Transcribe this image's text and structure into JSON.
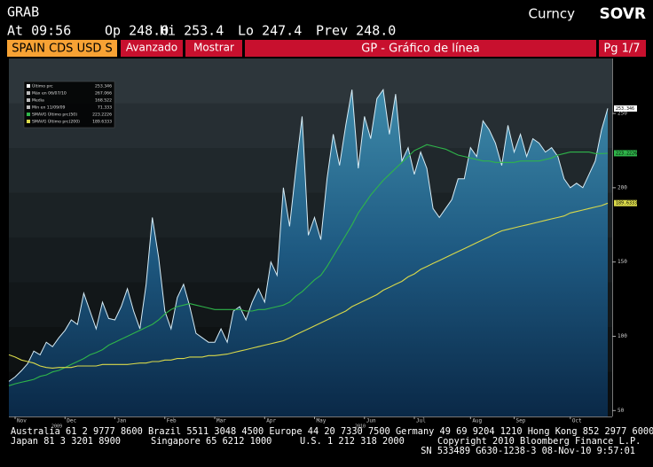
{
  "header": {
    "ticker": "GRAB",
    "market": "Curncy",
    "function": "SOVR",
    "quote": [
      "At 09:56",
      "Op 248.0",
      "Hi 253.4",
      "Lo 247.4",
      "Prev 248.0"
    ]
  },
  "toolbar": {
    "security": "SPAIN CDS USD S",
    "buttons": [
      "Avanzado",
      "Mostrar"
    ],
    "title": "GP - Gráfico de línea",
    "page": "Pg 1/7"
  },
  "chart_data": {
    "type": "line",
    "categories": [
      null,
      "Nov",
      null,
      null,
      null,
      null,
      null,
      null,
      null,
      "Dec",
      null,
      null,
      null,
      null,
      null,
      null,
      null,
      "Jan",
      null,
      null,
      null,
      null,
      null,
      null,
      null,
      "Feb",
      null,
      null,
      null,
      null,
      null,
      null,
      null,
      "Mar",
      null,
      null,
      null,
      null,
      null,
      null,
      null,
      "Apr",
      null,
      null,
      null,
      null,
      null,
      null,
      null,
      "May",
      null,
      null,
      null,
      null,
      null,
      null,
      null,
      "Jun",
      null,
      null,
      null,
      null,
      null,
      null,
      null,
      "Jul",
      null,
      null,
      null,
      null,
      null,
      null,
      null,
      null,
      "Aug",
      null,
      null,
      null,
      null,
      null,
      null,
      "Sep",
      null,
      null,
      null,
      null,
      null,
      null,
      null,
      null,
      "Oct",
      null,
      null,
      null,
      null,
      null,
      null
    ],
    "year_labels": [
      "2009",
      "2010"
    ],
    "series": [
      {
        "name": "Último prc",
        "color": "#d6ecf6",
        "last": 253.346,
        "values": [
          69.6,
          72.6,
          76.8,
          81.5,
          90,
          87.5,
          96,
          93,
          99,
          104,
          111,
          108,
          129,
          117,
          105,
          123,
          112,
          111,
          120,
          132,
          117,
          105,
          135,
          180,
          153,
          117,
          105,
          126,
          135,
          120,
          102,
          99,
          96,
          96,
          105,
          96,
          117,
          120,
          111,
          123,
          132,
          123,
          150,
          141,
          200,
          174,
          212,
          248,
          168,
          180,
          165,
          206,
          236,
          215,
          242,
          266,
          213,
          248,
          233,
          260,
          266,
          236,
          263,
          218,
          227,
          209,
          224,
          213,
          186,
          180,
          186,
          192,
          206,
          206,
          227,
          221,
          245,
          239,
          230,
          215,
          242,
          224,
          236,
          221,
          233,
          230,
          224,
          227,
          221,
          206,
          200,
          203,
          200,
          209,
          218,
          239,
          253.4
        ]
      },
      {
        "name": "SMAVG Último prc(50)",
        "color": "#2fb54a",
        "last": 223.2226,
        "values": [
          66.7,
          68,
          69,
          70,
          71,
          73,
          74,
          76,
          77,
          79,
          81,
          83,
          85,
          87.5,
          89,
          91,
          94,
          96,
          98,
          100,
          102,
          104,
          106,
          108,
          111,
          115,
          118,
          120,
          121,
          122,
          121,
          120,
          119,
          118,
          118,
          118,
          118,
          118,
          117,
          117,
          118,
          118,
          119,
          120,
          121,
          123,
          127,
          130,
          134,
          138,
          141,
          147,
          154,
          161,
          168,
          175,
          183,
          189,
          195,
          200,
          205,
          209,
          213,
          217,
          221,
          225,
          227,
          229,
          228,
          227,
          226,
          224,
          222,
          221,
          220,
          219,
          218,
          218,
          217,
          217,
          217,
          217,
          218,
          218,
          218,
          218,
          219,
          220,
          222,
          223,
          224,
          224,
          224,
          224,
          223,
          223,
          223.2
        ]
      },
      {
        "name": "SMAVG Último prc(200)",
        "color": "#d9d94a",
        "last": 189.6333,
        "values": [
          87.5,
          86,
          84,
          83,
          82,
          80,
          79,
          78.6,
          79,
          79,
          79,
          80,
          80,
          80,
          80,
          81,
          81,
          81,
          81,
          81,
          81.5,
          82,
          82,
          83,
          83,
          84,
          84,
          85,
          85,
          86,
          86,
          86,
          87,
          87,
          87.5,
          88,
          89,
          90,
          91,
          92,
          93,
          94,
          95,
          96,
          97,
          99,
          101,
          103,
          105,
          107,
          109,
          111,
          113,
          115,
          117,
          120,
          122,
          124,
          126,
          128,
          131,
          133,
          135,
          137,
          140,
          142,
          145,
          147,
          149,
          151,
          153,
          155,
          157,
          159,
          161,
          163,
          165,
          167,
          169,
          171,
          172,
          173,
          174,
          175,
          176,
          177,
          178,
          179,
          180,
          181,
          183,
          184,
          185,
          186,
          187,
          188,
          189.6
        ]
      }
    ],
    "legend_stats": [
      {
        "label": "Máx en 06/07/10",
        "value": 267.066
      },
      {
        "label": "Media",
        "value": 168.522
      },
      {
        "label": "Mín en 11/09/09",
        "value": 71.333
      }
    ],
    "ylim": [
      46,
      287
    ],
    "yticks": [
      50,
      100,
      150,
      200,
      250
    ]
  },
  "footer": {
    "lines": [
      [
        "Australia 61 2 9777 8600 Brazil 5511 3048 4500 Europe 44 20 7330 7500 Germany 49 69 9204 1210 Hong Kong 852 2977 6000"
      ],
      [
        "Japan 81 3 3201 8900",
        "Singapore 65 6212 1000",
        "U.S. 1 212 318 2000",
        "Copyright 2010 Bloomberg Finance L.P."
      ],
      [
        "SN 533489 G630-1238-3 08-Nov-10  9:57:01"
      ]
    ]
  }
}
